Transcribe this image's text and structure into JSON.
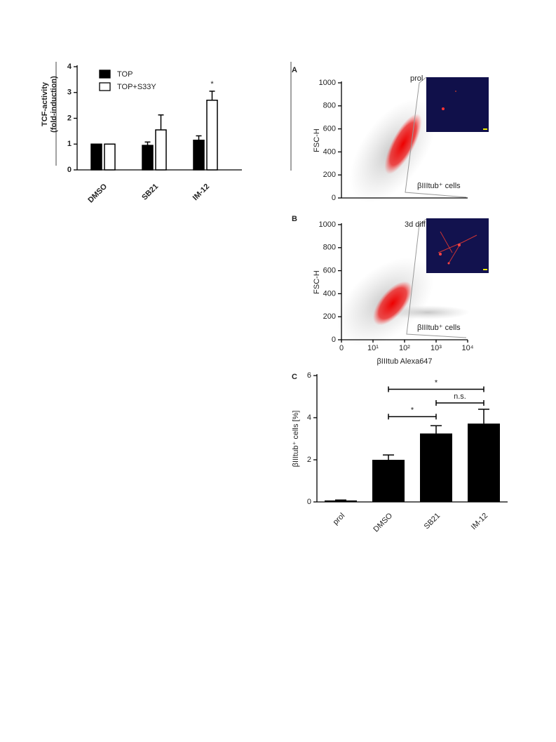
{
  "chart_data": [
    {
      "type": "bar",
      "categories": [
        "DMSO",
        "SB21",
        "IM-12"
      ],
      "ylabel": [
        "TCF-activity",
        "(fold-induction)"
      ],
      "ylim": [
        0,
        4
      ],
      "yticks": [
        0,
        1,
        2,
        3,
        4
      ],
      "legend": "top-left",
      "series": [
        {
          "name": "TOP",
          "color": "#000000",
          "values": [
            1.0,
            0.95,
            1.15
          ],
          "errors": [
            0,
            0.13,
            0.17
          ]
        },
        {
          "name": "TOP+S33Y",
          "color": "#ffffff",
          "values": [
            1.0,
            1.55,
            2.7
          ],
          "errors": [
            0,
            0.58,
            0.35
          ]
        }
      ],
      "annotations": [
        {
          "text": "*",
          "category": "IM-12",
          "series": "TOP+S33Y"
        }
      ]
    },
    {
      "type": "scatter",
      "panel": "A",
      "condition": "prol",
      "ylabel": "FSC-H",
      "ylim": [
        0,
        1000
      ],
      "yticks": [
        0,
        200,
        400,
        600,
        800,
        1000
      ],
      "xlim": [
        0,
        10000
      ],
      "xscale": "biexponential",
      "gate_label": "βIIItub⁺ cells",
      "gate_color": "#e8262b"
    },
    {
      "type": "scatter",
      "panel": "B",
      "condition": "3d diff",
      "ylabel": "FSC-H",
      "xlabel": "βIIItub Alexa647",
      "ylim": [
        0,
        1000
      ],
      "yticks": [
        0,
        200,
        400,
        600,
        800,
        1000
      ],
      "xlim": [
        0,
        10000
      ],
      "xscale": "biexponential",
      "xticks": [
        0,
        {
          "value": 10,
          "label": "10¹"
        },
        {
          "value": 100,
          "label": "10²"
        },
        {
          "value": 1000,
          "label": "10³"
        },
        {
          "value": 10000,
          "label": "10⁴"
        }
      ],
      "gate_label": "βIIItub⁺ cells",
      "gate_color": "#e8262b"
    },
    {
      "type": "bar",
      "panel": "C",
      "categories": [
        "prol",
        "DMSO",
        "SB21",
        "IM-12"
      ],
      "values": [
        0.07,
        2.0,
        3.25,
        3.72
      ],
      "errors": [
        0.02,
        0.23,
        0.37,
        0.68
      ],
      "color": "#000000",
      "ylabel": "βIIItub⁺ cells [%]",
      "ylim": [
        0,
        6
      ],
      "yticks": [
        0,
        2,
        4,
        6
      ],
      "brackets": [
        {
          "label": "*",
          "start": "DMSO",
          "end": "IM-12",
          "y": 5.35
        },
        {
          "label": "n.s.",
          "start": "SB21",
          "end": "IM-12",
          "y": 4.7
        },
        {
          "label": "*",
          "start": "DMSO",
          "end": "SB21",
          "y": 4.05
        }
      ]
    }
  ]
}
